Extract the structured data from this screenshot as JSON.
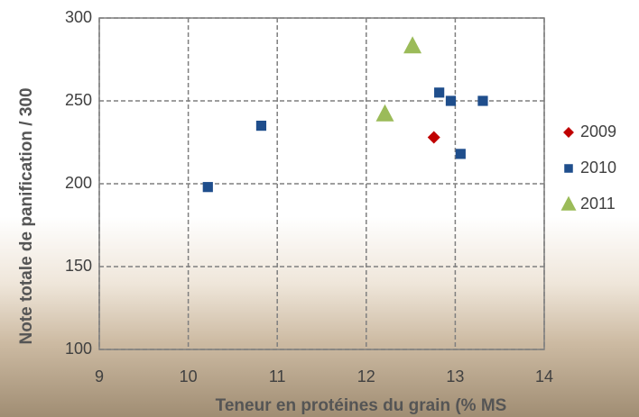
{
  "chart_data": {
    "type": "scatter",
    "x_label": "Teneur en protéines du grain (% MS",
    "y_label": "Note totale de panification / 300",
    "xlim": [
      9,
      14
    ],
    "xticks": [
      9,
      10,
      11,
      12,
      13,
      14
    ],
    "ylim": [
      100,
      300
    ],
    "yticks": [
      100,
      150,
      200,
      250,
      300
    ],
    "grid": true,
    "legend": "right",
    "series": [
      {
        "name": "2009",
        "color": "#c00000",
        "marker": "diamond",
        "x": [
          12.76
        ],
        "values": [
          228
        ]
      },
      {
        "name": "2010",
        "color": "#1f4e8c",
        "marker": "square",
        "x": [
          10.22,
          10.82,
          12.82,
          12.95,
          13.31,
          13.06
        ],
        "values": [
          198,
          235,
          255,
          250,
          250,
          218
        ]
      },
      {
        "name": "2011",
        "color": "#9bbb59",
        "marker": "triangle",
        "x": [
          12.21,
          12.52
        ],
        "values": [
          242,
          283
        ]
      }
    ]
  }
}
